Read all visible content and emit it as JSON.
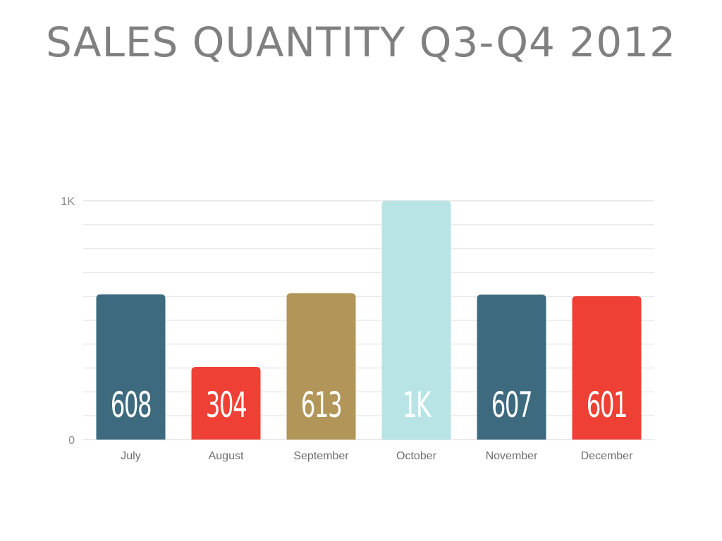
{
  "chart_data": {
    "type": "bar",
    "title": "SALES QUANTITY Q3-Q4 2012",
    "categories": [
      "July",
      "August",
      "September",
      "October",
      "November",
      "December"
    ],
    "values": [
      608,
      304,
      613,
      1000,
      607,
      601
    ],
    "value_labels": [
      "608",
      "304",
      "613",
      "1K",
      "607",
      "601"
    ],
    "colors": [
      "#3d6a7e",
      "#ee4034",
      "#b29558",
      "#b9e4e5",
      "#3d6a7e",
      "#ee4034"
    ],
    "ylim": [
      0,
      1000
    ],
    "y_tick_labels": [
      "0",
      "1K"
    ],
    "grid": true,
    "grid_color": "#e3e3e3",
    "xlabel": "",
    "ylabel": ""
  }
}
